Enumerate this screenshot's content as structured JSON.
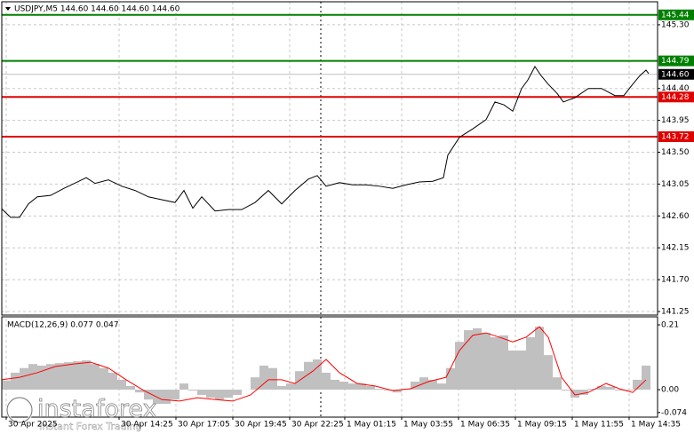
{
  "chart_data": [
    {
      "type": "line",
      "title": "USDJPY,M5  144.60 144.60 144.60 144.60",
      "color": "#000000",
      "x": [
        0,
        5,
        10,
        15,
        20,
        27.5,
        35,
        42.5,
        47.5,
        52.5,
        60,
        67.5,
        75,
        82.5,
        90,
        97.5,
        102.5,
        107.5,
        112.5,
        120,
        127.5,
        135,
        142.5,
        150,
        157.5,
        165,
        172.5,
        177.5,
        182.5,
        190,
        197.5,
        205,
        212.5,
        220,
        227.5,
        235,
        242.5,
        248.5,
        251,
        257.5,
        265,
        272.5,
        277.5,
        282.5,
        287.5,
        292.5,
        296,
        300,
        303.5,
        307.5,
        312.5,
        316,
        322.5,
        330,
        337.5,
        345,
        350,
        355,
        359,
        362.5,
        364
      ],
      "values": [
        142.7,
        142.58,
        142.58,
        142.77,
        142.87,
        142.89,
        142.99,
        143.08,
        143.14,
        143.06,
        143.11,
        143.02,
        142.96,
        142.87,
        142.83,
        142.79,
        142.96,
        142.71,
        142.87,
        142.67,
        142.69,
        142.69,
        142.79,
        142.96,
        142.77,
        142.96,
        143.12,
        143.17,
        143.02,
        143.07,
        143.04,
        143.04,
        143.02,
        142.99,
        143.04,
        143.08,
        143.09,
        143.14,
        143.46,
        143.71,
        143.83,
        143.96,
        144.21,
        144.17,
        144.08,
        144.4,
        144.52,
        144.71,
        144.58,
        144.46,
        144.33,
        144.21,
        144.27,
        144.4,
        144.4,
        144.3,
        144.3,
        144.46,
        144.58,
        144.66,
        144.61
      ],
      "xlim": [
        0,
        369
      ],
      "ylim": [
        141.2,
        145.65
      ],
      "yticks": [
        {
          "value": 145.3,
          "label": "145.30"
        },
        {
          "value": 144.4,
          "label": "144.40"
        },
        143.95,
        {
          "value": 143.5,
          "label": "143.50"
        },
        143.05,
        {
          "value": 142.6,
          "label": "142.60"
        },
        142.15,
        {
          "value": 141.7,
          "label": "141.70"
        },
        141.25
      ],
      "xticks": [
        {
          "value": 2.5,
          "label": "30 Apr 2025"
        },
        {
          "value": 66,
          "label": "30 Apr 14:25"
        },
        {
          "value": 98,
          "label": "30 Apr 17:05"
        },
        {
          "value": 130,
          "label": "30 Apr 19:45"
        },
        {
          "value": 162,
          "label": "30 Apr 22:25"
        },
        {
          "value": 193,
          "label": "1 May 01:15"
        },
        {
          "value": 225,
          "label": "1 May 03:55"
        },
        {
          "value": 257,
          "label": "1 May 06:35"
        },
        {
          "value": 289,
          "label": "1 May 09:15"
        },
        {
          "value": 321,
          "label": "1 May 11:55"
        },
        {
          "value": 353,
          "label": "1 May 14:35"
        }
      ],
      "hlines": [
        {
          "value": 145.44,
          "color": "#008000"
        },
        {
          "value": 144.79,
          "color": "#008000"
        },
        {
          "value": 144.28,
          "color": "#e00000"
        },
        {
          "value": 143.72,
          "color": "#e00000"
        }
      ],
      "last_price": {
        "value": 144.6,
        "label": "144.60"
      },
      "grid": true
    },
    {
      "type": "macd",
      "title": "MACD(12,26,9) 0.077 0.047",
      "xlim": [
        0,
        369
      ],
      "ylim": [
        -0.089,
        0.236
      ],
      "yticks": [
        0.21,
        {
          "value": 0,
          "label": "0.00"
        },
        -0.074
      ],
      "histogram": {
        "color": "#c0c0c0",
        "x": [
          2.5,
          7.5,
          12.5,
          17.5,
          22.5,
          27.5,
          32.5,
          37.5,
          42.5,
          47.5,
          52.5,
          57.5,
          62.5,
          67.5,
          72.5,
          77.5,
          82.5,
          87.5,
          92.5,
          97.5,
          102.5,
          107.5,
          112.5,
          117.5,
          122.5,
          127.5,
          132.5,
          137.5,
          142.5,
          147.5,
          152.5,
          157.5,
          162.5,
          167.5,
          172.5,
          177.5,
          182.5,
          187.5,
          192.5,
          197.5,
          202.5,
          207.5,
          212.5,
          217.5,
          222.5,
          227.5,
          232.5,
          237.5,
          242.5,
          247.5,
          252.5,
          257.5,
          262.5,
          267.5,
          272.5,
          277.5,
          282.5,
          287.5,
          292.5,
          297.5,
          302.5,
          307.5,
          312.5,
          317.5,
          322.5,
          327.5,
          332.5,
          337.5,
          342.5,
          347.5,
          352.5,
          357.5,
          362.5
        ],
        "values": [
          0.03,
          0.055,
          0.07,
          0.083,
          0.078,
          0.083,
          0.086,
          0.089,
          0.092,
          0.095,
          0.083,
          0.07,
          0.055,
          0.032,
          0.012,
          -0.009,
          -0.032,
          -0.046,
          -0.046,
          -0.032,
          0.02,
          -0.003,
          -0.017,
          -0.026,
          -0.032,
          -0.026,
          -0.017,
          0,
          0.04,
          0.078,
          0.07,
          0.012,
          0.02,
          0.06,
          0.09,
          0.098,
          0.055,
          0.032,
          0.026,
          0.02,
          0.02,
          0.012,
          0.003,
          -0.003,
          -0.009,
          0.003,
          0.026,
          0.04,
          0.032,
          0.02,
          0.07,
          0.155,
          0.193,
          0.199,
          0.184,
          0.17,
          0.176,
          0.127,
          0.127,
          0.17,
          0.204,
          0.112,
          0.04,
          -0.003,
          -0.026,
          -0.017,
          0.003,
          0.012,
          0.009,
          -0.003,
          -0.003,
          0.032,
          0.078
        ]
      },
      "signal": {
        "color": "#ff0000",
        "x": [
          0,
          10,
          20,
          30,
          40,
          50,
          60,
          70,
          80,
          90,
          100,
          110,
          120,
          130,
          140,
          150,
          157.5,
          165,
          175,
          182.5,
          190,
          200,
          210,
          220,
          230,
          240,
          250,
          257.5,
          265,
          272.5,
          280,
          287.5,
          295,
          302.5,
          307.5,
          315,
          322.5,
          330,
          340,
          347.5,
          355,
          362.5
        ],
        "values": [
          0.032,
          0.04,
          0.055,
          0.075,
          0.083,
          0.089,
          0.07,
          0.032,
          -0.003,
          -0.032,
          -0.037,
          -0.026,
          -0.032,
          -0.037,
          -0.017,
          0.032,
          0.032,
          0.02,
          0.06,
          0.098,
          0.055,
          0.02,
          0.012,
          -0.003,
          0.003,
          0.026,
          0.04,
          0.127,
          0.176,
          0.184,
          0.17,
          0.155,
          0.17,
          0.204,
          0.17,
          0.04,
          -0.017,
          -0.009,
          0.02,
          0.003,
          -0.009,
          0.032
        ]
      }
    }
  ],
  "watermark": {
    "brand": "instaforex",
    "tagline": "Instant Forex Trading"
  }
}
